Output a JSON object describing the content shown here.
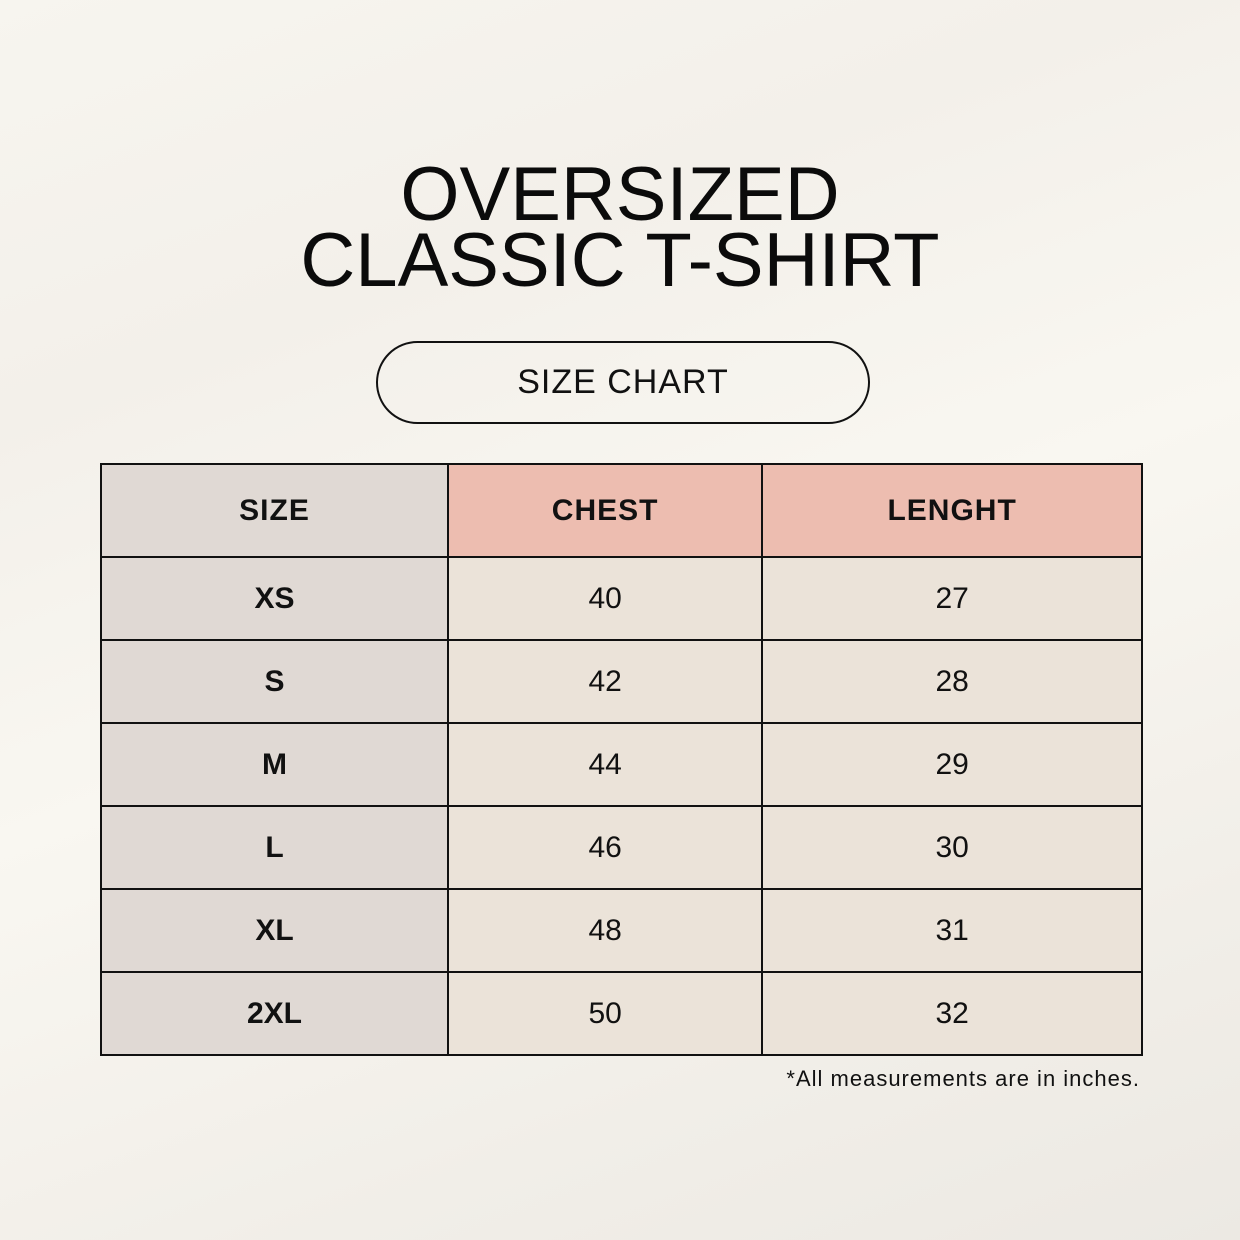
{
  "title": {
    "line1": "OVERSIZED",
    "line2": "CLASSIC T-SHIRT"
  },
  "badge": "SIZE CHART",
  "table": {
    "headers": [
      "SIZE",
      "CHEST",
      "LENGHT"
    ],
    "rows": [
      [
        "XS",
        "40",
        "27"
      ],
      [
        "S",
        "42",
        "28"
      ],
      [
        "M",
        "44",
        "29"
      ],
      [
        "L",
        "46",
        "30"
      ],
      [
        "XL",
        "48",
        "31"
      ],
      [
        "2XL",
        "50",
        "32"
      ]
    ]
  },
  "note": "*All measurements are in inches.",
  "colors": {
    "size_column": "#e0d9d4",
    "header_accent": "#edbdb0",
    "cell": "#ebe3d9",
    "background": "#f7f5ef"
  }
}
